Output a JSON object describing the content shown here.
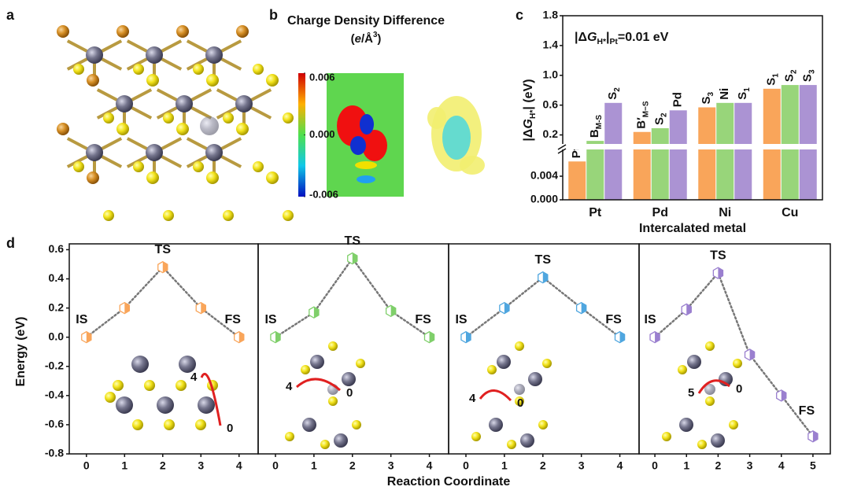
{
  "figure": {
    "panel_labels": [
      "a",
      "b",
      "c",
      "d"
    ],
    "reaction_xlabel": "Reaction Coordinate"
  },
  "charge_density": {
    "title": "Charge Density Difference",
    "unit": [
      {
        "text": "(",
        "style": "normal"
      },
      {
        "text": "e",
        "style": "italic"
      },
      {
        "text": "/Å",
        "style": "normal"
      },
      {
        "text": "3",
        "style": "sup"
      },
      {
        "text": ")",
        "style": "normal"
      }
    ],
    "ticks": [
      0.006,
      {
        "value": 0,
        "label": "0.000"
      },
      -0.006
    ],
    "range": [
      -0.006,
      0.006
    ]
  },
  "chart_data": [
    {
      "type": "broken-bar",
      "annotation": [
        {
          "text": "|Δ",
          "style": "normal"
        },
        {
          "text": "G",
          "style": "italic"
        },
        {
          "text": "H*",
          "style": "sub"
        },
        {
          "text": "|",
          "style": "normal"
        },
        {
          "text": "Pt",
          "style": "sub"
        },
        {
          "text": "=0.01 eV",
          "style": "normal"
        }
      ],
      "ylabel": [
        {
          "text": "|Δ",
          "style": "normal"
        },
        {
          "text": "G",
          "style": "italic"
        },
        {
          "text": "H*",
          "style": "sub"
        },
        {
          "text": "| (eV)",
          "style": "normal"
        }
      ],
      "xlabel": "Intercalated metal",
      "categories": [
        "Pt",
        "Pd",
        "Ni",
        "Cu"
      ],
      "y_segments": [
        {
          "ylim": [
            0,
            0.008
          ],
          "yticks": [
            {
              "value": 0,
              "label": "0.000"
            },
            0.004
          ]
        },
        {
          "ylim": [
            0.1,
            1.8
          ],
          "yticks": [
            0.2,
            0.6,
            {
              "value": 1,
              "label": "1.0"
            },
            1.4,
            1.8
          ]
        }
      ],
      "series": [
        {
          "color": "#f9a55a",
          "values": [
            0.0065,
            0.24,
            0.57,
            0.82
          ],
          "bar_labels": [
            "Pt",
            {
              "main": "B′",
              "sub": "M−S"
            },
            {
              "main": "S",
              "sub": "3"
            },
            {
              "main": "S",
              "sub": "1"
            }
          ]
        },
        {
          "color": "#98d57a",
          "values": [
            0.12,
            0.29,
            0.63,
            0.87
          ],
          "bar_labels": [
            {
              "main": "B",
              "sub": "M-S"
            },
            {
              "main": "S",
              "sub": "2"
            },
            "Ni",
            {
              "main": "S",
              "sub": "2"
            }
          ]
        },
        {
          "color": "#ab93d3",
          "values": [
            0.63,
            0.53,
            0.63,
            0.87
          ],
          "bar_labels": [
            {
              "main": "S",
              "sub": "2"
            },
            "Pd",
            {
              "main": "S",
              "sub": "1"
            },
            {
              "main": "S",
              "sub": "3"
            }
          ]
        }
      ]
    },
    {
      "type": "line",
      "ylabel": "Energy (eV)",
      "color": "#f9a55a",
      "line_style": "dotted",
      "x": [
        0,
        1,
        2,
        3,
        4
      ],
      "values": [
        0,
        0.2,
        0.48,
        0.2,
        0
      ],
      "point_labels": [
        "IS",
        null,
        "TS",
        null,
        "FS"
      ],
      "xlim": [
        -0.45,
        4.5
      ],
      "ylim": [
        -0.8,
        0.64
      ],
      "xticks": [
        0,
        1,
        2,
        3,
        4
      ],
      "yticks": [
        0.6,
        0.4,
        0.2,
        {
          "value": 0,
          "label": "0.0"
        },
        -0.2,
        -0.4,
        -0.6,
        -0.8
      ],
      "inset_labels": [
        "4",
        "0"
      ]
    },
    {
      "type": "line",
      "color": "#7fcf6a",
      "line_style": "dotted",
      "x": [
        0,
        1,
        2,
        3,
        4
      ],
      "values": [
        0,
        0.17,
        0.54,
        0.18,
        0
      ],
      "point_labels": [
        "IS",
        null,
        "TS",
        null,
        "FS"
      ],
      "xlim": [
        -0.45,
        4.5
      ],
      "ylim": [
        -0.8,
        0.64
      ],
      "xticks": [
        0,
        1,
        2,
        3,
        4
      ],
      "inset_labels": [
        "4",
        "0"
      ]
    },
    {
      "type": "line",
      "color": "#4fa6df",
      "line_style": "dotted",
      "x": [
        0,
        1,
        2,
        3,
        4
      ],
      "values": [
        0,
        0.2,
        0.41,
        0.2,
        0
      ],
      "point_labels": [
        "IS",
        null,
        "TS",
        null,
        "FS"
      ],
      "xlim": [
        -0.45,
        4.5
      ],
      "ylim": [
        -0.8,
        0.64
      ],
      "xticks": [
        0,
        1,
        2,
        3,
        4
      ],
      "inset_labels": [
        "4",
        "0"
      ]
    },
    {
      "type": "line",
      "color": "#9a7fcf",
      "line_style": "dotted",
      "x": [
        0,
        1,
        2,
        3,
        4,
        5
      ],
      "values": [
        0,
        0.19,
        0.44,
        -0.12,
        -0.4,
        -0.68
      ],
      "point_labels": [
        "IS",
        null,
        "TS",
        null,
        null,
        "FS"
      ],
      "xlim": [
        -0.5,
        5.55
      ],
      "ylim": [
        -0.8,
        0.64
      ],
      "xticks": [
        0,
        1,
        2,
        3,
        4,
        5
      ],
      "inset_labels": [
        "5",
        "0"
      ]
    }
  ]
}
